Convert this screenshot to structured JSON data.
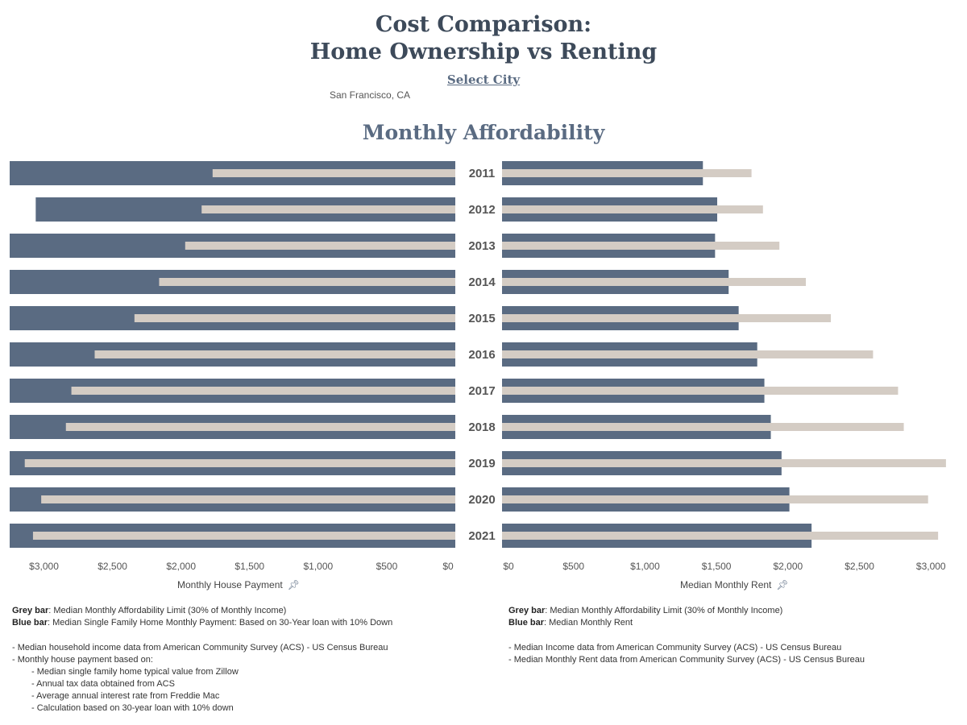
{
  "header": {
    "title_line1": "Cost Comparison:",
    "title_line2": "Home Ownership vs Renting",
    "select_city_label": "Select City",
    "city_value": "San Francisco, CA"
  },
  "section_title": "Monthly Affordability",
  "chart_data": [
    {
      "type": "bar",
      "orientation": "horizontal",
      "direction": "right-to-left",
      "categories": [
        "2011",
        "2012",
        "2013",
        "2014",
        "2015",
        "2016",
        "2017",
        "2018",
        "2019",
        "2020",
        "2021"
      ],
      "series": [
        {
          "name": "Median Single Family Home Monthly Payment",
          "role": "blue bar",
          "color": "#5a6b82",
          "values": [
            3250,
            3060,
            3250,
            3250,
            3250,
            3250,
            3250,
            3250,
            3250,
            3250,
            3250
          ]
        },
        {
          "name": "Median Monthly Affordability Limit (30% of Monthly Income)",
          "role": "grey bar",
          "color": "#d4ccc4",
          "values": [
            1770,
            1850,
            1970,
            2160,
            2340,
            2630,
            2800,
            2840,
            3140,
            3020,
            3080
          ]
        }
      ],
      "xlabel": "Monthly House Payment",
      "xlim": [
        0,
        3250
      ],
      "ticks": [
        "$3,000",
        "$2,500",
        "$2,000",
        "$1,500",
        "$1,000",
        "$500",
        "$0"
      ],
      "tick_values": [
        3000,
        2500,
        2000,
        1500,
        1000,
        500,
        0
      ],
      "grid": false
    },
    {
      "type": "bar",
      "orientation": "horizontal",
      "direction": "left-to-right",
      "categories": [
        "2011",
        "2012",
        "2013",
        "2014",
        "2015",
        "2016",
        "2017",
        "2018",
        "2019",
        "2020",
        "2021"
      ],
      "series": [
        {
          "name": "Median Monthly Rent",
          "role": "blue bar",
          "color": "#5a6b82",
          "values": [
            1405,
            1505,
            1490,
            1585,
            1655,
            1785,
            1835,
            1880,
            1955,
            2010,
            2165
          ]
        },
        {
          "name": "Median Monthly Affordability Limit (30% of Monthly Income)",
          "role": "grey bar",
          "color": "#d4ccc4",
          "values": [
            1745,
            1825,
            1940,
            2125,
            2300,
            2595,
            2770,
            2810,
            3105,
            2980,
            3050
          ]
        }
      ],
      "xlabel": "Median Monthly Rent",
      "xlim": [
        0,
        3100
      ],
      "ticks": [
        "$0",
        "$500",
        "$1,000",
        "$1,500",
        "$2,000",
        "$2,500",
        "$3,000"
      ],
      "tick_values": [
        0,
        500,
        1000,
        1500,
        2000,
        2500,
        3000
      ],
      "grid": false
    }
  ],
  "left_notes": {
    "grey_label": "Grey bar",
    "grey_text": ": Median Monthly Affordability Limit (30% of Monthly Income)",
    "blue_label": "Blue bar",
    "blue_text": ": Median Single Family Home Monthly Payment: Based on 30-Year loan with 10% Down",
    "line1": "- Median household income data from American Community Survey (ACS) - US Census Bureau",
    "line2": "- Monthly house payment based on:",
    "sub1": "- Median single family home typical value from Zillow",
    "sub2": "- Annual tax data obtained from ACS",
    "sub3": "- Average annual interest rate from Freddie Mac",
    "sub4": "- Calculation based on 30-year loan with 10% down"
  },
  "right_notes": {
    "grey_label": "Grey bar",
    "grey_text": ": Median Monthly Affordability Limit (30% of Monthly Income)",
    "blue_label": "Blue bar",
    "blue_text": ": Median Monthly Rent",
    "line1": "- Median Income data from American Community Survey (ACS) - US Census Bureau",
    "line2": "- Median Monthly Rent data from American Community Survey (ACS) - US Census Bureau"
  },
  "icons": {
    "pin": "pin-icon"
  }
}
